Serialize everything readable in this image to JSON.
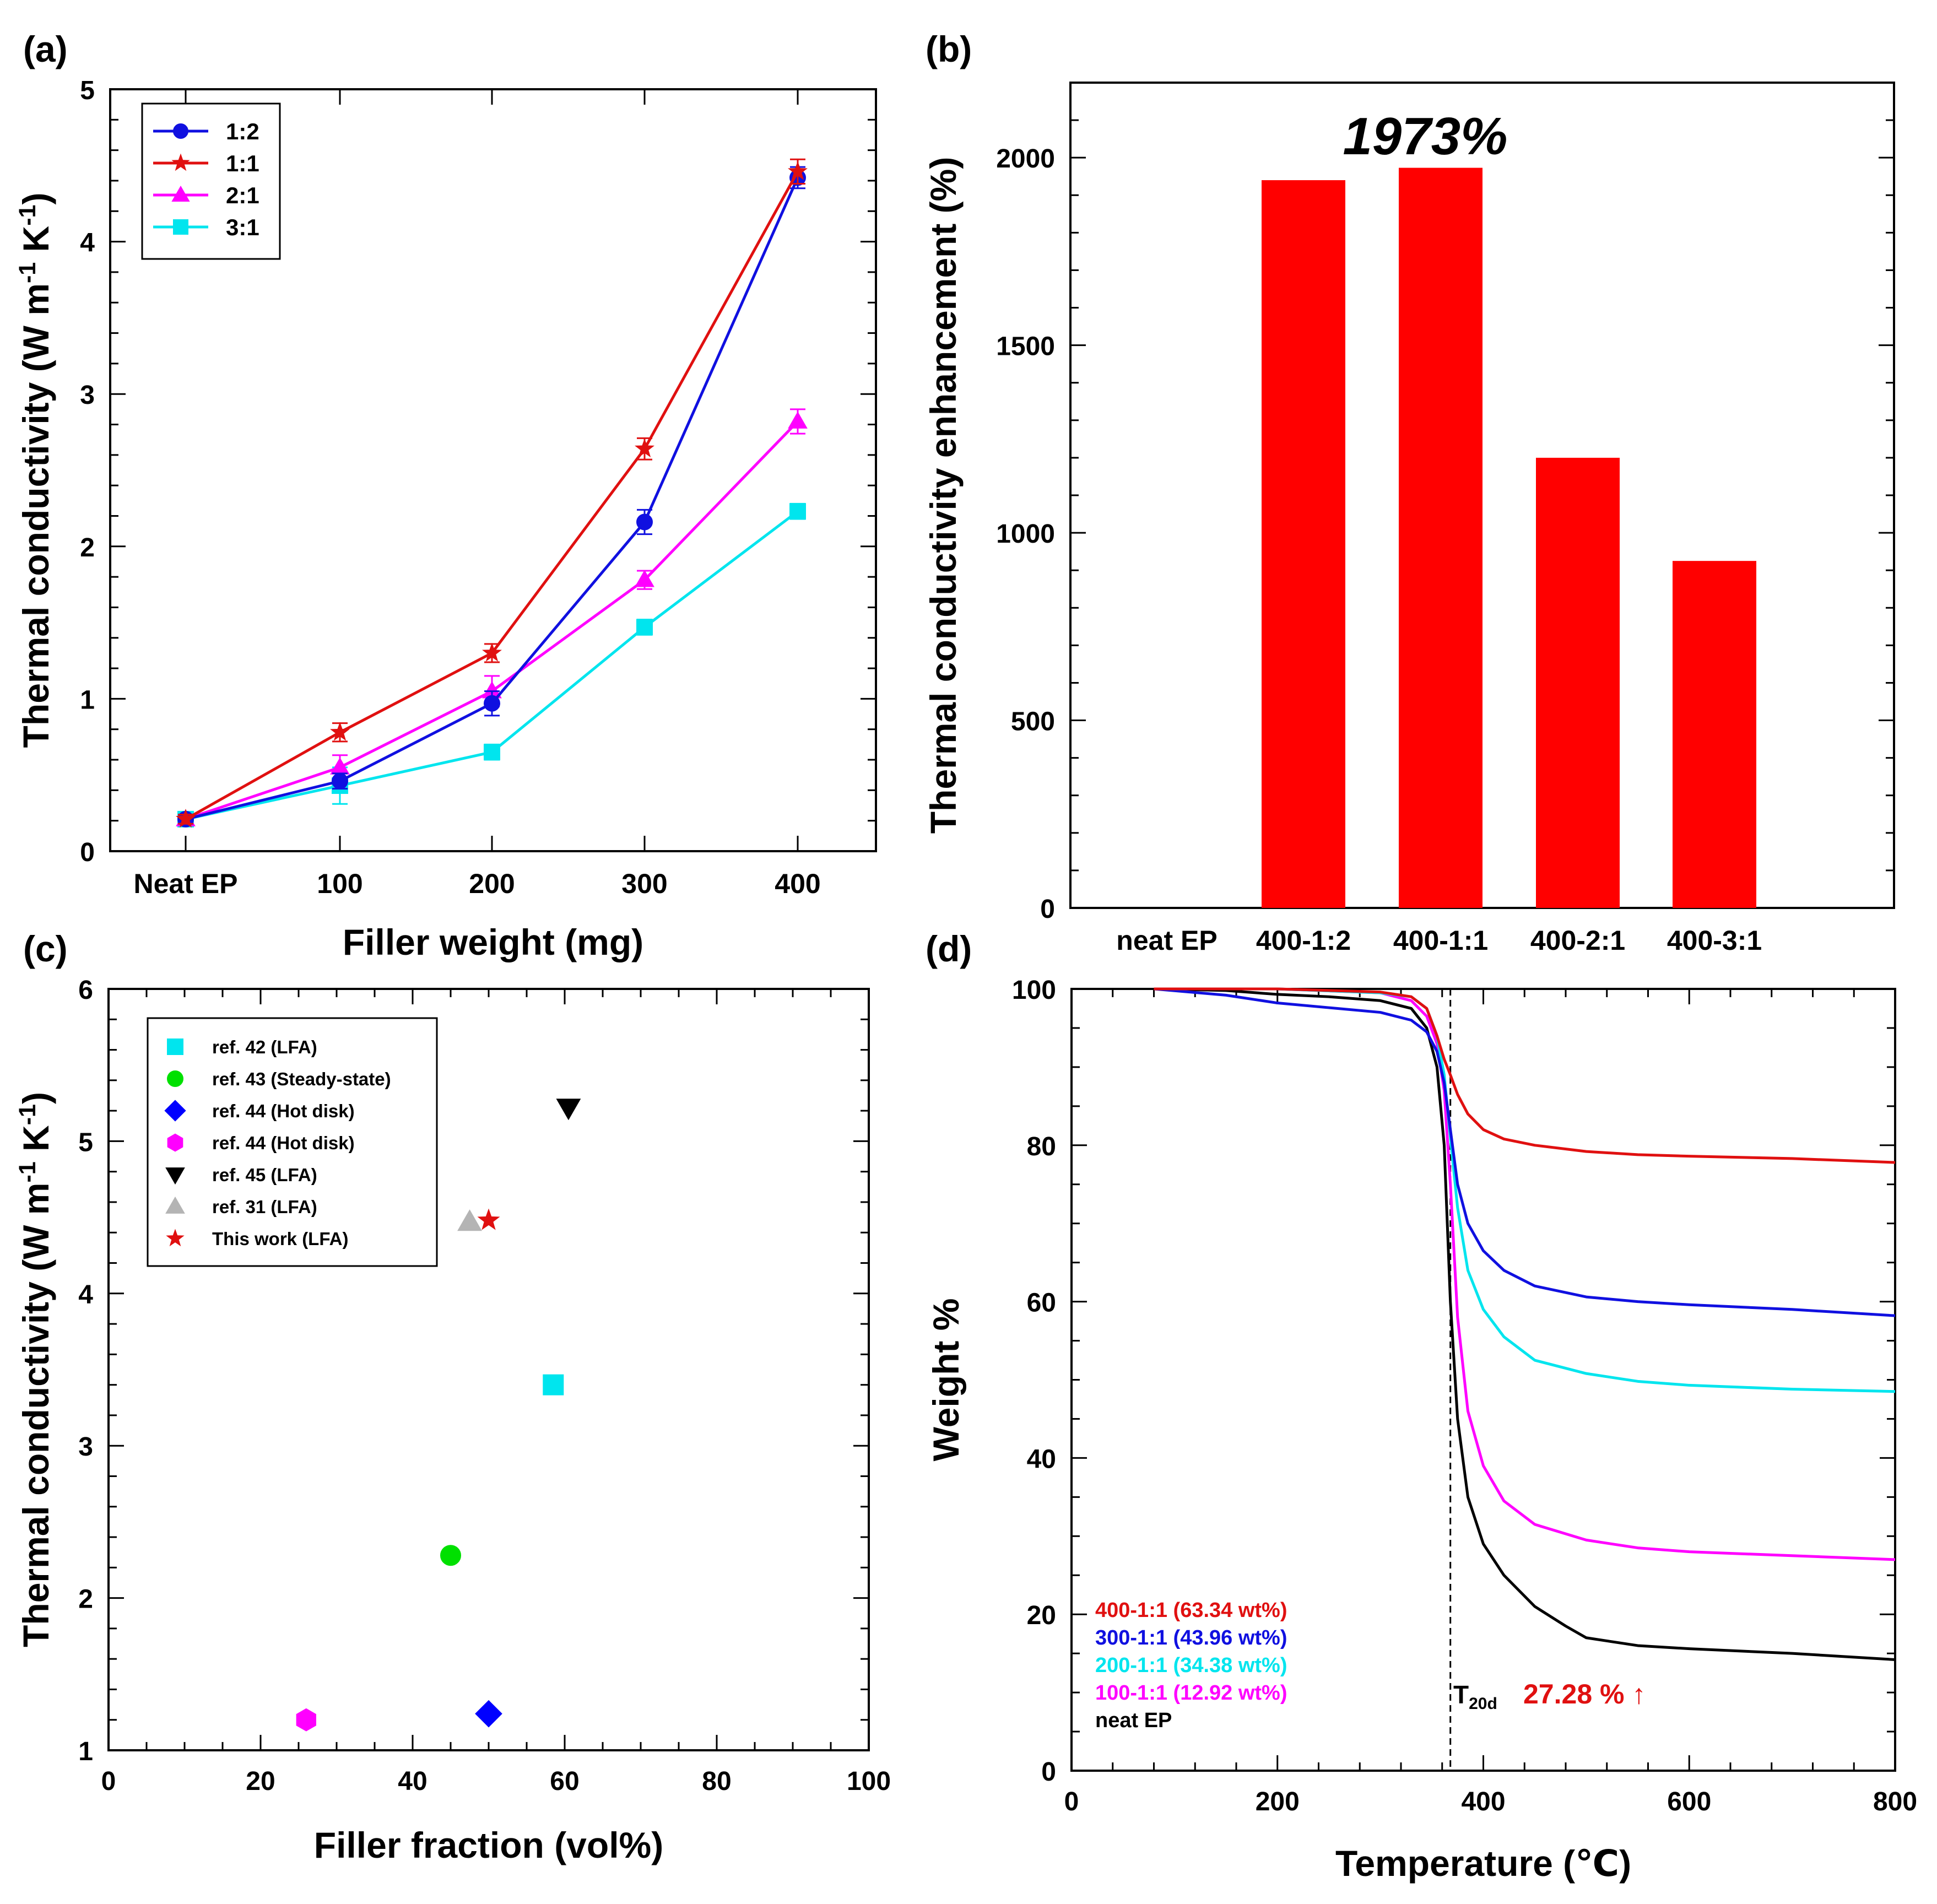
{
  "colors": {
    "series_1_2": "#1010e0",
    "series_1_1": "#e01010",
    "series_2_1": "#ff00ff",
    "series_3_1": "#00e5ee",
    "bar": "#ff0000",
    "ref42": "#00e5ee",
    "ref43": "#00e000",
    "ref44_diamond": "#0000ff",
    "ref44_hex": "#ff00ff",
    "ref45": "#000000",
    "ref31": "#b4b4b4",
    "thiswork": "#e01010",
    "tga_400": "#e01010",
    "tga_300": "#1010e0",
    "tga_200": "#00e5ee",
    "tga_100": "#ff00ff",
    "tga_neat": "#000000"
  },
  "chart_data": [
    {
      "panel": "(a)",
      "type": "line",
      "xlabel": "Filler weight (mg)",
      "ylabel": "Thermal conductivity (W m-1 K-1)",
      "ylabel_parts": [
        "Thermal conductivity (W m",
        "-1",
        " K",
        "-1",
        ")"
      ],
      "categories": [
        "Neat EP",
        "100",
        "200",
        "300",
        "400"
      ],
      "ylim": [
        0,
        5
      ],
      "yticks": [
        "0",
        "1",
        "2",
        "3",
        "4",
        "5"
      ],
      "series": [
        {
          "name": "1:2",
          "marker": "circle",
          "values": [
            0.21,
            0.46,
            0.97,
            2.16,
            4.42
          ],
          "errors": [
            0.03,
            0.05,
            0.08,
            0.08,
            0.07
          ]
        },
        {
          "name": "1:1",
          "marker": "star",
          "values": [
            0.21,
            0.78,
            1.3,
            2.64,
            4.46
          ],
          "errors": [
            0.03,
            0.06,
            0.06,
            0.07,
            0.08
          ]
        },
        {
          "name": "2:1",
          "marker": "triangle",
          "values": [
            0.21,
            0.55,
            1.05,
            1.78,
            2.82
          ],
          "errors": [
            0.03,
            0.08,
            0.1,
            0.06,
            0.08
          ]
        },
        {
          "name": "3:1",
          "marker": "square",
          "values": [
            0.21,
            0.43,
            0.65,
            1.47,
            2.23
          ],
          "errors": [
            0.03,
            0.12,
            0.05,
            0.05,
            0.05
          ]
        }
      ]
    },
    {
      "panel": "(b)",
      "type": "bar",
      "xlabel": "",
      "ylabel": "Thermal conductivity enhancement (%)",
      "categories": [
        "neat EP",
        "400-1:2",
        "400-1:1",
        "400-2:1",
        "400-3:1"
      ],
      "values": [
        0,
        1940,
        1973,
        1200,
        925
      ],
      "ylim": [
        0,
        2200
      ],
      "yticks": [
        "0",
        "500",
        "1000",
        "1500",
        "2000"
      ],
      "annotation": "1973%"
    },
    {
      "panel": "(c)",
      "type": "scatter",
      "xlabel": "Filler fraction (vol%)",
      "ylabel": "Thermal conductivity (W m-1 K-1)",
      "ylabel_parts": [
        "Thermal conductivity (W m",
        "-1",
        " K",
        "-1",
        ")"
      ],
      "xlim": [
        0,
        100
      ],
      "ylim": [
        1,
        6
      ],
      "xticks": [
        "0",
        "20",
        "40",
        "60",
        "80",
        "100"
      ],
      "yticks": [
        "1",
        "2",
        "3",
        "4",
        "5",
        "6"
      ],
      "series": [
        {
          "name": "ref. 42 (LFA)",
          "marker": "square",
          "x": 58.5,
          "y": 3.4
        },
        {
          "name": "ref. 43 (Steady-state)",
          "marker": "circle",
          "x": 45,
          "y": 2.28
        },
        {
          "name": "ref. 44 (Hot disk)",
          "marker": "diamond",
          "x": 50,
          "y": 1.24
        },
        {
          "name": "ref. 44 (Hot disk)",
          "marker": "hexagon",
          "x": 26,
          "y": 1.2
        },
        {
          "name": "ref. 45 (LFA)",
          "marker": "triangle-down",
          "x": 60.5,
          "y": 5.22
        },
        {
          "name": "ref. 31 (LFA)",
          "marker": "triangle",
          "x": 47.5,
          "y": 4.47
        },
        {
          "name": "This work (LFA)",
          "marker": "star",
          "x": 50,
          "y": 4.48
        }
      ]
    },
    {
      "panel": "(d)",
      "type": "line",
      "xlabel": "Temperature (℃)",
      "ylabel": "Weight %",
      "xlim": [
        0,
        800
      ],
      "ylim": [
        0,
        100
      ],
      "xticks": [
        "0",
        "200",
        "400",
        "600",
        "800"
      ],
      "yticks": [
        "0",
        "20",
        "40",
        "60",
        "80",
        "100"
      ],
      "vline_x": 368,
      "annotation": {
        "label": "T",
        "subscript": "20d",
        "value": "27.28 % ↑"
      },
      "series": [
        {
          "name": "400-1:1 (63.34 wt%)",
          "x": [
            80,
            200,
            300,
            330,
            345,
            355,
            362,
            368,
            375,
            385,
            400,
            420,
            450,
            500,
            550,
            600,
            700,
            800
          ],
          "y": [
            100,
            100,
            99.6,
            99,
            97.5,
            94,
            91,
            89,
            86.5,
            84,
            82,
            80.8,
            80,
            79.2,
            78.8,
            78.6,
            78.3,
            77.8
          ]
        },
        {
          "name": "300-1:1 (43.96 wt%)",
          "x": [
            80,
            150,
            200,
            250,
            300,
            330,
            345,
            355,
            362,
            368,
            375,
            385,
            400,
            420,
            450,
            500,
            550,
            600,
            700,
            800
          ],
          "y": [
            100,
            99.2,
            98.2,
            97.6,
            97,
            96,
            94.5,
            92,
            88,
            82,
            75,
            70,
            66.5,
            64,
            62,
            60.6,
            60,
            59.6,
            59,
            58.2
          ]
        },
        {
          "name": "200-1:1 (34.38 wt%)",
          "x": [
            80,
            200,
            300,
            330,
            345,
            355,
            362,
            368,
            375,
            385,
            400,
            420,
            450,
            500,
            550,
            600,
            700,
            800
          ],
          "y": [
            100,
            100,
            99.5,
            99,
            97.5,
            94,
            89,
            81,
            72,
            64,
            59,
            55.5,
            52.5,
            50.8,
            49.8,
            49.3,
            48.8,
            48.5
          ]
        },
        {
          "name": "100-1:1 (12.92 wt%)",
          "x": [
            80,
            200,
            300,
            330,
            345,
            355,
            362,
            368,
            375,
            385,
            400,
            420,
            450,
            500,
            550,
            600,
            700,
            800
          ],
          "y": [
            100,
            100,
            99.5,
            98.5,
            96.5,
            93,
            87,
            75,
            58,
            46,
            39,
            34.5,
            31.5,
            29.5,
            28.5,
            28,
            27.5,
            27
          ]
        },
        {
          "name": "neat EP",
          "x": [
            80,
            150,
            200,
            250,
            300,
            330,
            345,
            355,
            362,
            368,
            375,
            385,
            400,
            420,
            450,
            480,
            500,
            550,
            600,
            700,
            800
          ],
          "y": [
            100,
            99.8,
            99.3,
            99,
            98.5,
            97.5,
            95,
            90,
            80,
            60,
            45,
            35,
            29,
            25,
            21,
            18.5,
            17,
            16,
            15.6,
            15,
            14.2
          ]
        }
      ]
    }
  ]
}
